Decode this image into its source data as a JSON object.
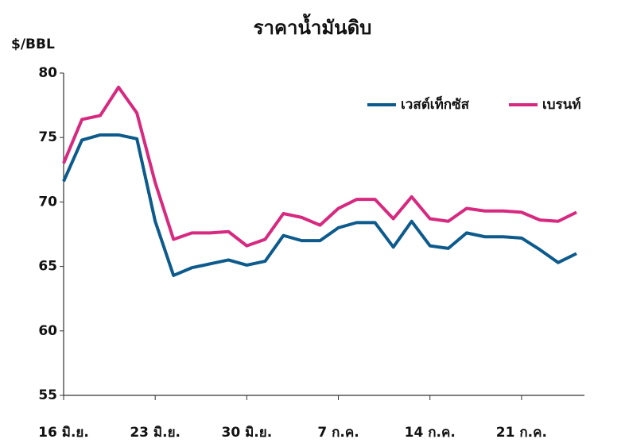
{
  "chart_data": {
    "type": "line",
    "title": "ราคาน้ำมันดิบ",
    "y_label": "$/BBL",
    "categories": [
      "16 มิ.ย.",
      null,
      null,
      null,
      null,
      "23 มิ.ย.",
      null,
      null,
      null,
      null,
      "30 มิ.ย.",
      null,
      null,
      null,
      null,
      "7 ก.ค.",
      null,
      null,
      null,
      null,
      "14 ก.ค.",
      null,
      null,
      null,
      null,
      "21 ก.ค.",
      null,
      null,
      null
    ],
    "series": [
      {
        "name": "เวสต์เท็กซัส",
        "color": "#0d5a8c",
        "values": [
          71.6,
          74.8,
          75.2,
          75.2,
          74.9,
          68.5,
          64.3,
          64.9,
          65.2,
          65.5,
          65.1,
          65.4,
          67.4,
          67.0,
          67.0,
          68.0,
          68.4,
          68.4,
          66.5,
          68.5,
          66.6,
          66.4,
          67.6,
          67.3,
          67.3,
          67.2,
          66.3,
          65.3,
          66.0
        ]
      },
      {
        "name": "เบรนท์",
        "color": "#d6297f",
        "values": [
          73.0,
          76.4,
          76.7,
          78.9,
          76.9,
          71.5,
          67.1,
          67.6,
          67.6,
          67.7,
          66.6,
          67.1,
          69.1,
          68.8,
          68.2,
          69.5,
          70.2,
          70.2,
          68.7,
          70.4,
          68.7,
          68.5,
          69.5,
          69.3,
          69.3,
          69.2,
          68.6,
          68.5,
          69.2
        ]
      }
    ],
    "ylim": [
      55,
      80
    ],
    "yticks": [
      55,
      60,
      65,
      70,
      75,
      80
    ],
    "grid": false,
    "legend": "top-right"
  }
}
